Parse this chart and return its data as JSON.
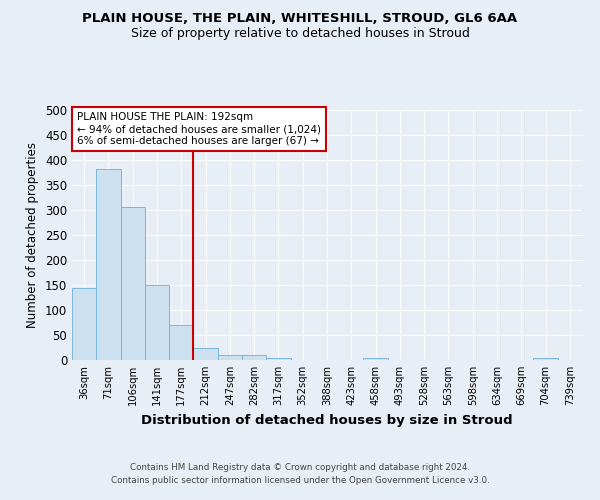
{
  "title": "PLAIN HOUSE, THE PLAIN, WHITESHILL, STROUD, GL6 6AA",
  "subtitle": "Size of property relative to detached houses in Stroud",
  "xlabel": "Distribution of detached houses by size in Stroud",
  "ylabel": "Number of detached properties",
  "bar_labels": [
    "36sqm",
    "71sqm",
    "106sqm",
    "141sqm",
    "177sqm",
    "212sqm",
    "247sqm",
    "282sqm",
    "317sqm",
    "352sqm",
    "388sqm",
    "423sqm",
    "458sqm",
    "493sqm",
    "528sqm",
    "563sqm",
    "598sqm",
    "634sqm",
    "669sqm",
    "704sqm",
    "739sqm"
  ],
  "bar_values": [
    144,
    383,
    307,
    150,
    71,
    24,
    10,
    10,
    4,
    0,
    0,
    0,
    5,
    0,
    0,
    0,
    0,
    0,
    0,
    5,
    0
  ],
  "bar_color": "#cce0f0",
  "bar_edge_color": "#7ab8d9",
  "red_line_x": 4.5,
  "annotation_title": "PLAIN HOUSE THE PLAIN: 192sqm",
  "annotation_line1": "← 94% of detached houses are smaller (1,024)",
  "annotation_line2": "6% of semi-detached houses are larger (67) →",
  "annotation_box_color": "#ffffff",
  "annotation_box_edge": "#cc0000",
  "red_line_color": "#cc0000",
  "footer1": "Contains HM Land Registry data © Crown copyright and database right 2024.",
  "footer2": "Contains public sector information licensed under the Open Government Licence v3.0.",
  "bg_color": "#e8eef5",
  "plot_bg_color": "#e8eef5",
  "ylim": [
    0,
    500
  ],
  "yticks": [
    0,
    50,
    100,
    150,
    200,
    250,
    300,
    350,
    400,
    450,
    500
  ]
}
